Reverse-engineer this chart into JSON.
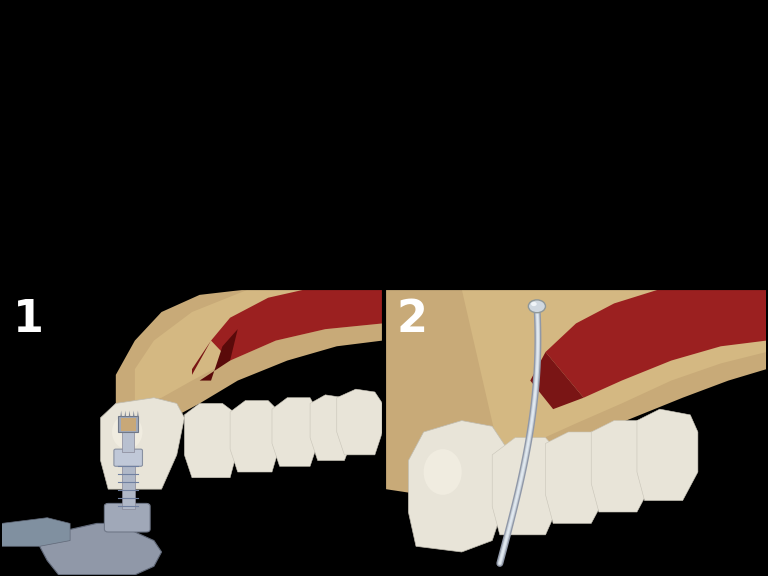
{
  "background_color": "#000000",
  "label_color": "#ffffff",
  "label_fontsize": 32,
  "label_fontweight": "bold",
  "figsize": [
    7.68,
    5.76
  ],
  "dpi": 100,
  "bone_color": "#c8aa78",
  "bone_color2": "#d4b882",
  "gum_color": "#9b2020",
  "gum_dark": "#7a1515",
  "tooth_color": "#e8e4d8",
  "tooth_shadow": "#d0ccc0",
  "implant_silver": "#b8c0cc",
  "implant_dark": "#808898",
  "implant_light": "#d8e0e8",
  "graft_base": "#c8945a",
  "graft_dark": "#a07040",
  "graft_light": "#d8a870",
  "abutment_blue": "#4488cc",
  "abutment_dark": "#2255aa",
  "black": "#000000",
  "divider_thickness": 3
}
